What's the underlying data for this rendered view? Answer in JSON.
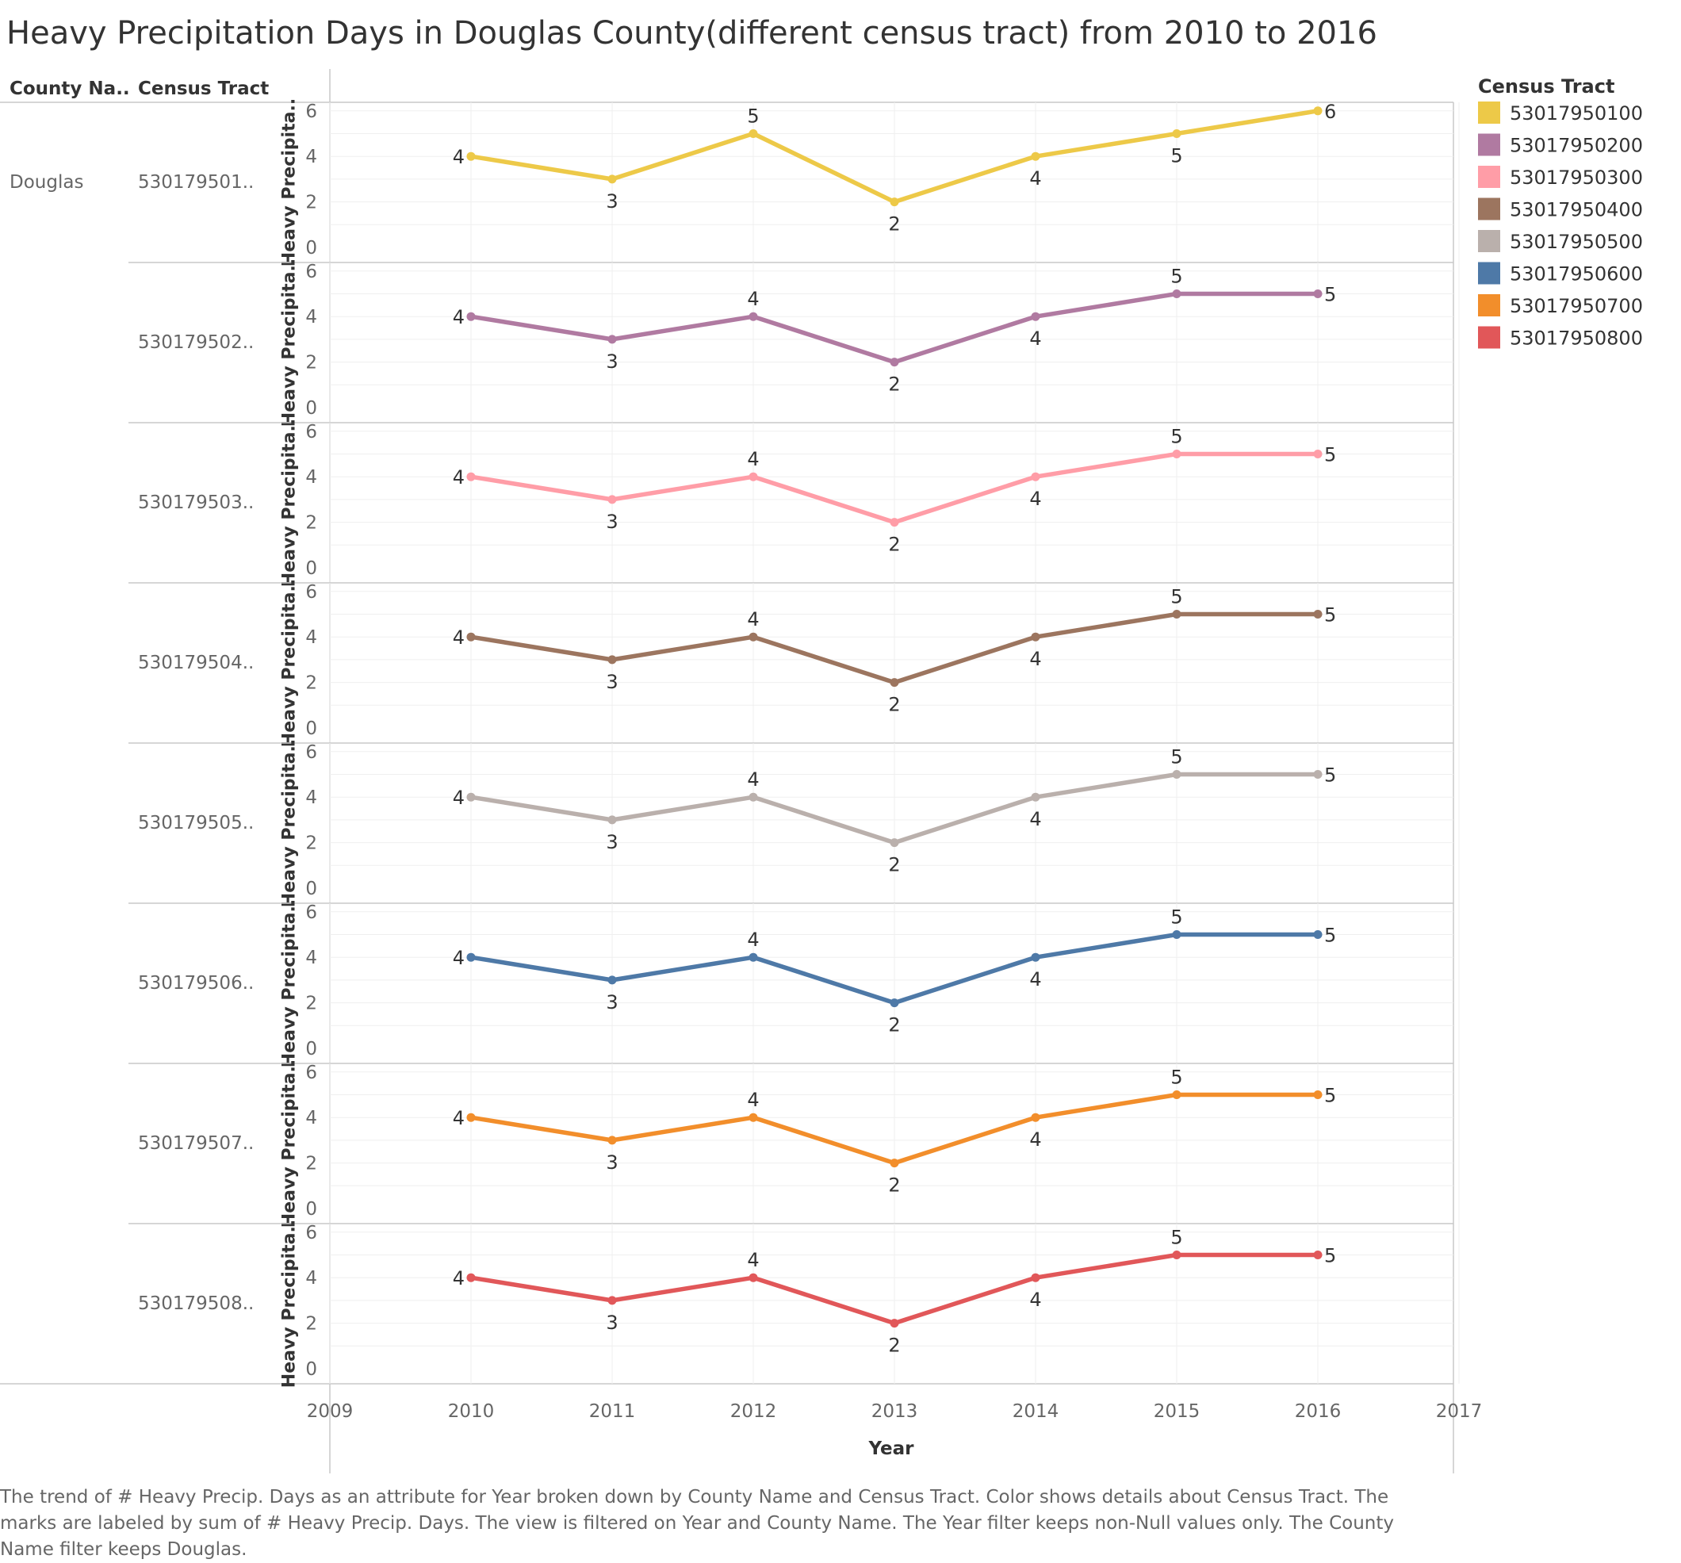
{
  "title": "Heavy Precipitation Days in Douglas County(different census tract) from 2010 to 2016",
  "headers": {
    "county": "County Na..",
    "tract": "Census Tract"
  },
  "county": "Douglas",
  "legend": {
    "title": "Census Tract",
    "items": [
      "53017950100",
      "53017950200",
      "53017950300",
      "53017950400",
      "53017950500",
      "53017950600",
      "53017950700",
      "53017950800"
    ]
  },
  "caption": "The trend of # Heavy Precip. Days as an attribute for Year broken down by County Name and Census Tract.  Color shows details about Census Tract.  The marks are labeled by sum of # Heavy Precip. Days. The view is filtered on Year and County Name. The Year filter keeps non-Null values only. The County Name filter keeps Douglas.",
  "chart_data": {
    "type": "line",
    "title": "Heavy Precipitation Days in Douglas County(different census tract) from 2010 to 2016",
    "xlabel": "Year",
    "ylabel": "Heavy Precipita..",
    "x": [
      2010,
      2011,
      2012,
      2013,
      2014,
      2015,
      2016
    ],
    "xlim": [
      2009,
      2017
    ],
    "xticks": [
      2009,
      2010,
      2011,
      2012,
      2013,
      2014,
      2015,
      2016,
      2017
    ],
    "ylim": [
      0,
      7
    ],
    "yticks": [
      0,
      2,
      4,
      6
    ],
    "legend_position": "right",
    "series": [
      {
        "name": "53017950100",
        "row_label": "530179501..",
        "color": "#EDC948",
        "values": [
          4,
          3,
          5,
          2,
          4,
          5,
          6
        ]
      },
      {
        "name": "53017950200",
        "row_label": "530179502..",
        "color": "#B07AA1",
        "values": [
          4,
          3,
          4,
          2,
          4,
          5,
          5
        ]
      },
      {
        "name": "53017950300",
        "row_label": "530179503..",
        "color": "#FF9DA7",
        "values": [
          4,
          3,
          4,
          2,
          4,
          5,
          5
        ]
      },
      {
        "name": "53017950400",
        "row_label": "530179504..",
        "color": "#9C755F",
        "values": [
          4,
          3,
          4,
          2,
          4,
          5,
          5
        ]
      },
      {
        "name": "53017950500",
        "row_label": "530179505..",
        "color": "#BAB0AC",
        "values": [
          4,
          3,
          4,
          2,
          4,
          5,
          5
        ]
      },
      {
        "name": "53017950600",
        "row_label": "530179506..",
        "color": "#4E79A7",
        "values": [
          4,
          3,
          4,
          2,
          4,
          5,
          5
        ]
      },
      {
        "name": "53017950700",
        "row_label": "530179507..",
        "color": "#F28E2B",
        "values": [
          4,
          3,
          4,
          2,
          4,
          5,
          5
        ]
      },
      {
        "name": "53017950800",
        "row_label": "530179508..",
        "color": "#E15759",
        "values": [
          4,
          3,
          4,
          2,
          4,
          5,
          5
        ]
      }
    ]
  }
}
